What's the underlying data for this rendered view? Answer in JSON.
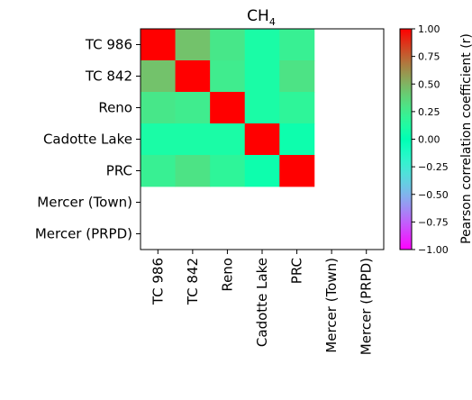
{
  "chart_data": {
    "type": "heatmap",
    "title": "CH",
    "title_subscript": "4",
    "row_labels": [
      "TC 986",
      "TC 842",
      "Reno",
      "Cadotte Lake",
      "PRC",
      "Mercer (Town)",
      "Mercer (PRPD)"
    ],
    "col_labels": [
      "TC 986",
      "TC 842",
      "Reno",
      "Cadotte Lake",
      "PRC",
      "Mercer (Town)",
      "Mercer (PRPD)"
    ],
    "values": [
      [
        1.0,
        0.45,
        0.28,
        0.1,
        0.22,
        null,
        null
      ],
      [
        0.45,
        1.0,
        0.25,
        0.1,
        0.3,
        null,
        null
      ],
      [
        0.28,
        0.25,
        1.0,
        0.1,
        0.18,
        null,
        null
      ],
      [
        0.1,
        0.1,
        0.1,
        1.0,
        0.05,
        null,
        null
      ],
      [
        0.22,
        0.3,
        0.18,
        0.05,
        1.0,
        null,
        null
      ],
      [
        null,
        null,
        null,
        null,
        null,
        null,
        null
      ],
      [
        null,
        null,
        null,
        null,
        null,
        null,
        null
      ]
    ],
    "colorbar": {
      "label": "Pearson correlation coefficient (r)",
      "range": [
        -1.0,
        1.0
      ],
      "ticks": [
        1.0,
        0.75,
        0.5,
        0.25,
        0.0,
        -0.25,
        -0.5,
        -0.75,
        -1.0
      ],
      "tick_labels": [
        "1.00",
        "0.75",
        "0.50",
        "0.25",
        "0.00",
        "−0.25",
        "−0.50",
        "−0.75",
        "−1.00"
      ],
      "colormap": "rainbow"
    }
  }
}
